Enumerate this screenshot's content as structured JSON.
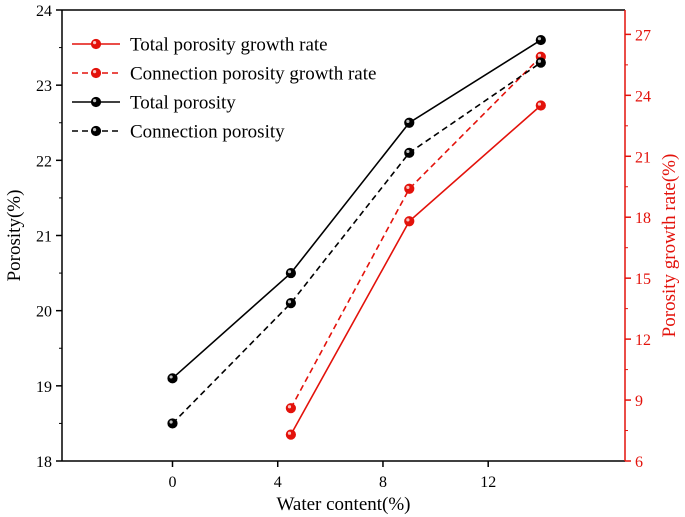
{
  "chart_data": {
    "type": "line",
    "title": "",
    "x": [
      0,
      4.5,
      9,
      14
    ],
    "xlabel": "Water content(%)",
    "xlim": [
      -4.2,
      17.2
    ],
    "xticks": [
      0,
      4,
      8,
      12
    ],
    "xtick_labels": [
      "0",
      "4",
      "8",
      "12"
    ],
    "y_left": {
      "label": "Porosity(%)",
      "lim": [
        18,
        24
      ],
      "ticks": [
        18,
        19,
        20,
        21,
        22,
        23,
        24
      ],
      "tick_labels": [
        "18",
        "19",
        "20",
        "21",
        "22",
        "23",
        "24"
      ],
      "color": "#000000"
    },
    "y_right": {
      "label": "Porosity growth rate(%)",
      "lim": [
        6,
        28.2
      ],
      "ticks": [
        6,
        9,
        12,
        15,
        18,
        21,
        24,
        27
      ],
      "tick_labels": [
        "6",
        "9",
        "12",
        "15",
        "18",
        "21",
        "24",
        "27"
      ],
      "color": "#e3120b"
    },
    "series": [
      {
        "name": "Total porosity growth rate",
        "axis": "right",
        "style": "solid",
        "color": "#e3120b",
        "x": [
          4.5,
          9,
          14
        ],
        "values": [
          7.3,
          17.8,
          23.5
        ]
      },
      {
        "name": "Connection porosity growth rate",
        "axis": "right",
        "style": "dashed",
        "color": "#e3120b",
        "x": [
          4.5,
          9,
          14
        ],
        "values": [
          8.6,
          19.4,
          25.9
        ]
      },
      {
        "name": "Total porosity",
        "axis": "left",
        "style": "solid",
        "color": "#000000",
        "x": [
          0,
          4.5,
          9,
          14
        ],
        "values": [
          19.1,
          20.5,
          22.5,
          23.6
        ]
      },
      {
        "name": "Connection porosity",
        "axis": "left",
        "style": "dashed",
        "color": "#000000",
        "x": [
          0,
          4.5,
          9,
          14
        ],
        "values": [
          18.5,
          20.1,
          22.1,
          23.3
        ]
      }
    ],
    "legend": "top-left"
  }
}
